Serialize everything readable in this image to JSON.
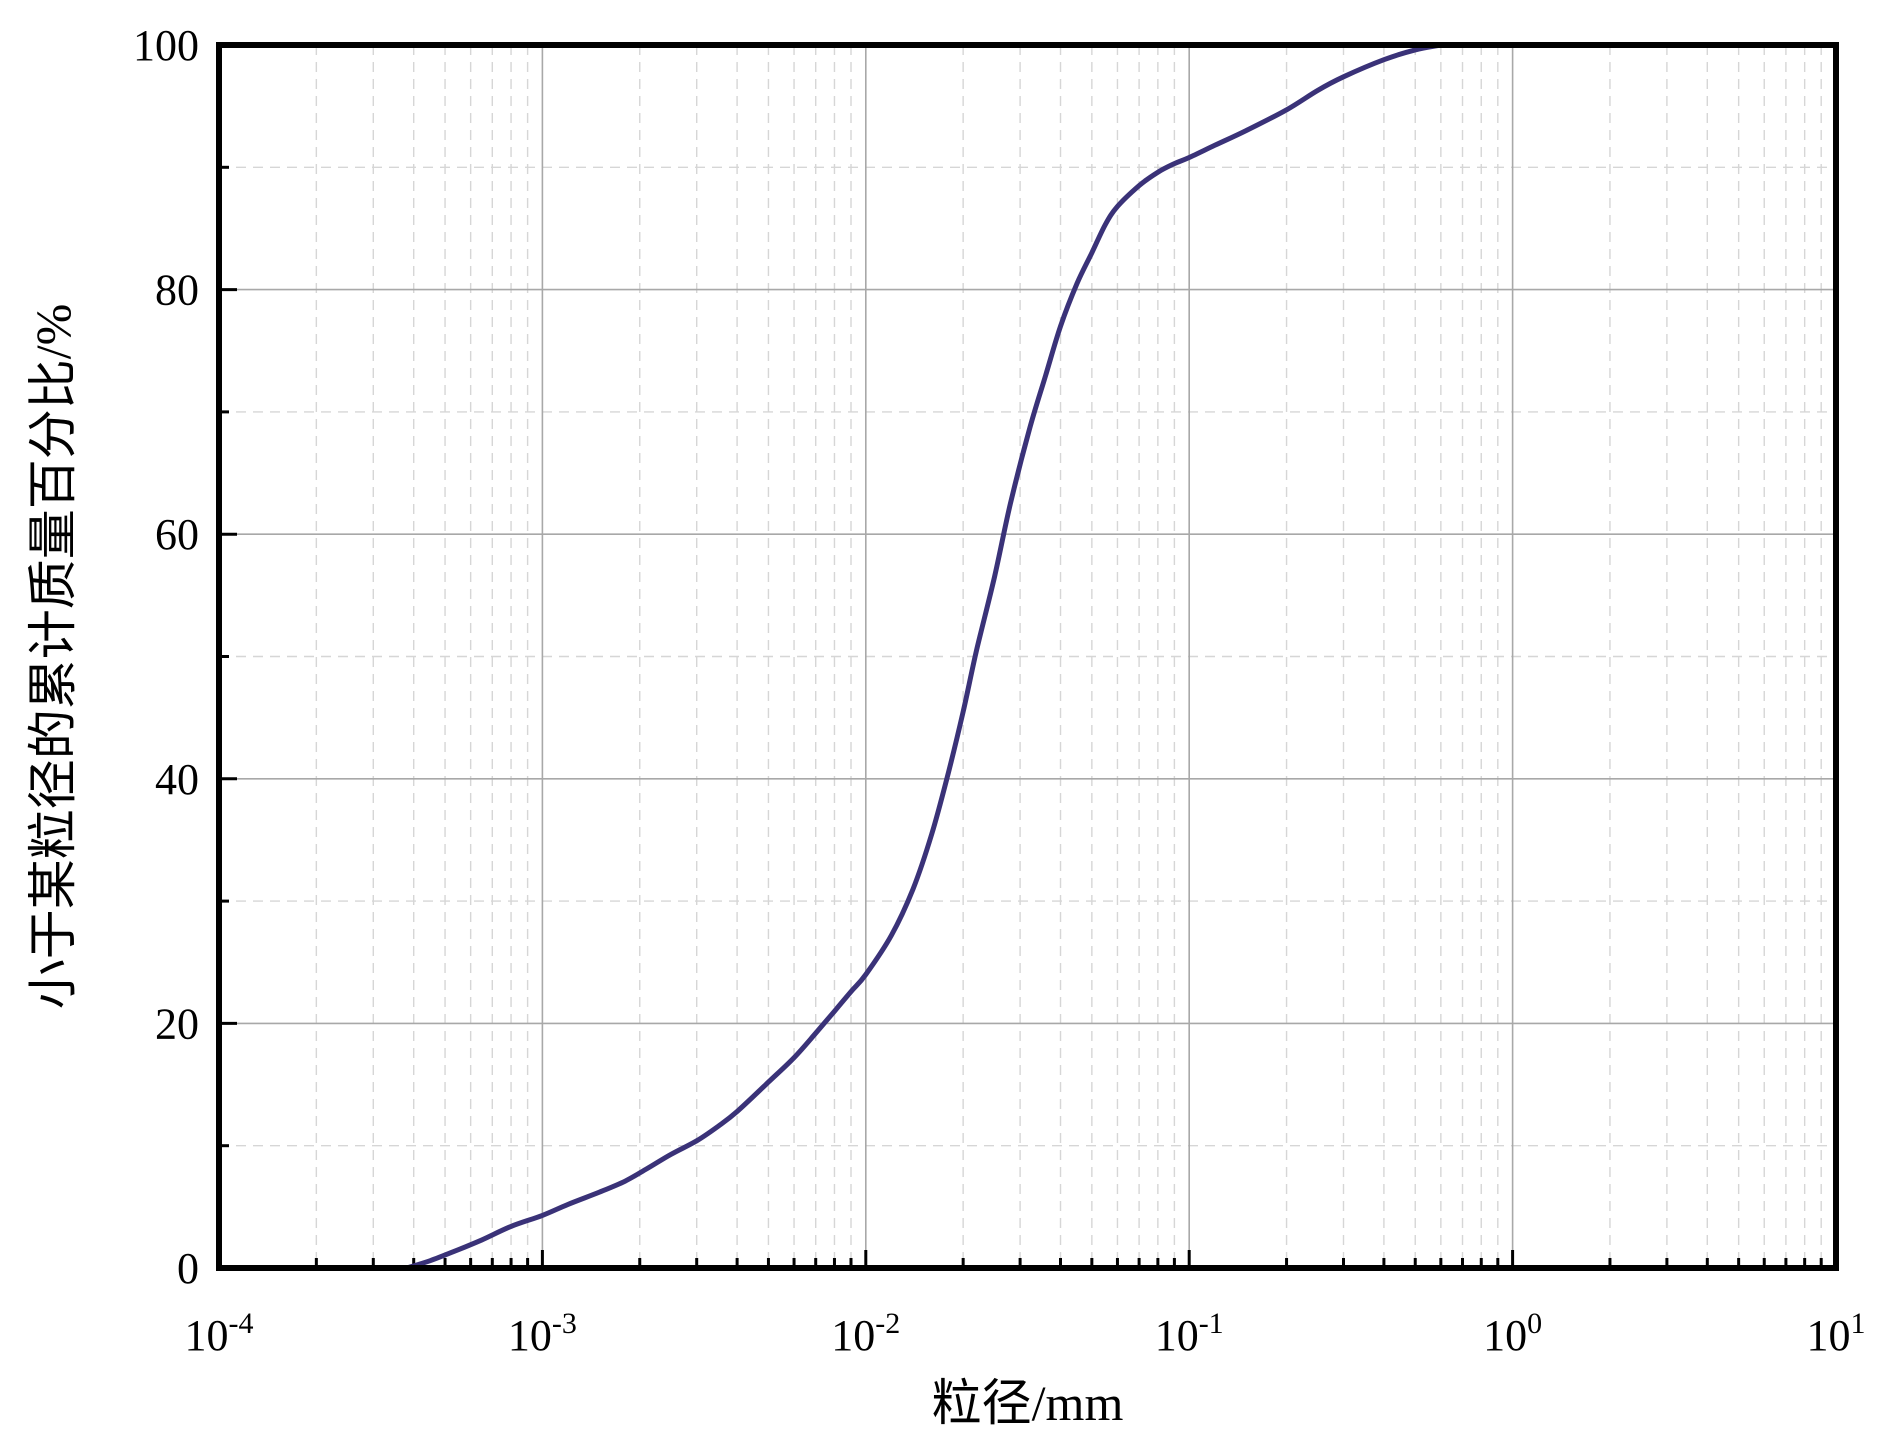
{
  "chart_data": {
    "type": "line",
    "title": "",
    "xlabel": "粒径/mm",
    "ylabel": "小于某粒径的累计质量百分比/%",
    "x_scale": "log",
    "xlim": [
      0.0001,
      10
    ],
    "ylim": [
      0,
      100
    ],
    "x_ticks": [
      {
        "base": "10",
        "exp": "-4"
      },
      {
        "base": "10",
        "exp": "-3"
      },
      {
        "base": "10",
        "exp": "-2"
      },
      {
        "base": "10",
        "exp": "-1"
      },
      {
        "base": "10",
        "exp": "0"
      },
      {
        "base": "10",
        "exp": "1"
      }
    ],
    "y_ticks": [
      "0",
      "20",
      "40",
      "60",
      "80",
      "100"
    ],
    "grid": true,
    "line_color": "#3a3278",
    "series": [
      {
        "x": [
          0.00038,
          0.00045,
          0.00055,
          0.00065,
          0.0008,
          0.001,
          0.0012,
          0.0015,
          0.0018,
          0.0021,
          0.0025,
          0.003,
          0.0035,
          0.004,
          0.005,
          0.006,
          0.007,
          0.008,
          0.009,
          0.01,
          0.012,
          0.014,
          0.016,
          0.018,
          0.02,
          0.022,
          0.025,
          0.028,
          0.032,
          0.036,
          0.04,
          0.045,
          0.05,
          0.055,
          0.06,
          0.07,
          0.08,
          0.09,
          0.1,
          0.12,
          0.15,
          0.2,
          0.25,
          0.3,
          0.4,
          0.5,
          0.6
        ],
        "y": [
          0,
          0.6,
          1.5,
          2.3,
          3.4,
          4.3,
          5.2,
          6.2,
          7.1,
          8.1,
          9.3,
          10.4,
          11.6,
          12.8,
          15.2,
          17.2,
          19.2,
          21.0,
          22.6,
          24.0,
          27.2,
          31.0,
          35.5,
          40.5,
          45.5,
          50.5,
          56.5,
          62.5,
          68.5,
          73.0,
          77.0,
          80.5,
          83.0,
          85.3,
          86.8,
          88.5,
          89.6,
          90.3,
          90.8,
          91.8,
          93.0,
          94.7,
          96.3,
          97.4,
          98.8,
          99.6,
          100.0
        ]
      }
    ]
  }
}
